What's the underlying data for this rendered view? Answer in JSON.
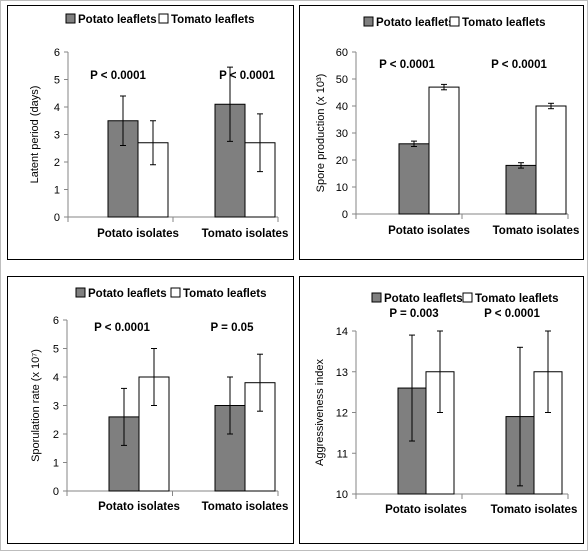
{
  "colors": {
    "potato": "#7f7f7f",
    "tomato": "#ffffff",
    "axis": "#868686",
    "outline": "#000000"
  },
  "chart_data": [
    {
      "type": "bar",
      "categories": [
        "Potato isolates",
        "Tomato isolates"
      ],
      "series": [
        {
          "name": "Potato leaflets",
          "values": [
            3.5,
            4.1
          ],
          "errors": [
            0.9,
            1.35
          ]
        },
        {
          "name": "Tomato leaflets",
          "values": [
            2.7,
            2.7
          ],
          "errors": [
            0.8,
            1.05
          ]
        }
      ],
      "ylabel": "Latent period (days)",
      "ylim": [
        0,
        6
      ],
      "yticks": [
        0,
        1,
        2,
        3,
        4,
        5,
        6
      ],
      "annotations": [
        "P < 0.0001",
        "P < 0.0001"
      ],
      "legend": "top"
    },
    {
      "type": "bar",
      "categories": [
        "Potato isolates",
        "Tomato isolates"
      ],
      "series": [
        {
          "name": "Potato leaflets",
          "values": [
            26,
            18
          ],
          "errors": [
            1,
            1
          ]
        },
        {
          "name": "Tomato leaflets",
          "values": [
            47,
            40
          ],
          "errors": [
            1,
            1
          ]
        }
      ],
      "ylabel": "Spore production (x 10³)",
      "ylim": [
        0,
        60
      ],
      "yticks": [
        0,
        10,
        20,
        30,
        40,
        50,
        60
      ],
      "annotations": [
        "P < 0.0001",
        "P < 0.0001"
      ],
      "legend": "top"
    },
    {
      "type": "bar",
      "categories": [
        "Potato isolates",
        "Tomato isolates"
      ],
      "series": [
        {
          "name": "Potato leaflets",
          "values": [
            2.6,
            3.0
          ],
          "errors": [
            1.0,
            1.0
          ]
        },
        {
          "name": "Tomato leaflets",
          "values": [
            4.0,
            3.8
          ],
          "errors": [
            1.0,
            1.0
          ]
        }
      ],
      "ylabel": "Sporulation rate (x 10⁷)",
      "ylim": [
        0,
        6
      ],
      "yticks": [
        0,
        1,
        2,
        3,
        4,
        5,
        6
      ],
      "annotations": [
        "P < 0.0001",
        "P  = 0.05"
      ],
      "legend": "top"
    },
    {
      "type": "bar",
      "categories": [
        "Potato isolates",
        "Tomato isolates"
      ],
      "series": [
        {
          "name": "Potato leaflets",
          "values": [
            12.6,
            11.9
          ],
          "errors": [
            1.3,
            1.7
          ]
        },
        {
          "name": "Tomato leaflets",
          "values": [
            13.0,
            13.0
          ],
          "errors": [
            1.0,
            1.0
          ]
        }
      ],
      "ylabel": "Aggressiveness index",
      "ylim": [
        10,
        14
      ],
      "yticks": [
        10,
        11,
        12,
        13,
        14
      ],
      "annotations": [
        "P = 0.003",
        "P < 0.0001"
      ],
      "legend": "top"
    }
  ]
}
